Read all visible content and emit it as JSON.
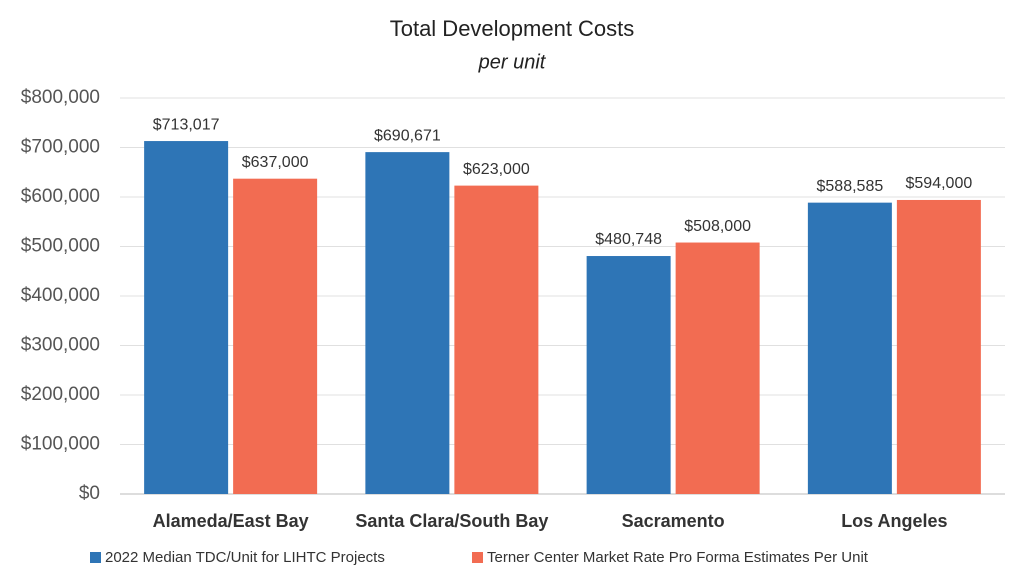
{
  "chart_data": {
    "type": "bar",
    "title": "Total Development Costs",
    "subtitle": "per unit",
    "categories": [
      "Alameda/East Bay",
      "Santa Clara/South Bay",
      "Sacramento",
      "Los Angeles"
    ],
    "series": [
      {
        "name": "2022 Median TDC/Unit for LIHTC Projects",
        "color": "#2e75b6",
        "values": [
          713017,
          690671,
          480748,
          588585
        ],
        "value_labels": [
          "$713,017",
          "$690,671",
          "$480,748",
          "$588,585"
        ]
      },
      {
        "name": "Terner Center Market Rate Pro Forma Estimates Per Unit",
        "color": "#f26c52",
        "values": [
          637000,
          623000,
          508000,
          594000
        ],
        "value_labels": [
          "$637,000",
          "$623,000",
          "$508,000",
          "$594,000"
        ]
      }
    ],
    "ylim": [
      0,
      800000
    ],
    "yticks": [
      {
        "value": 0,
        "label": "$0"
      },
      {
        "value": 100000,
        "label": "$100,000"
      },
      {
        "value": 200000,
        "label": "$200,000"
      },
      {
        "value": 300000,
        "label": "$300,000"
      },
      {
        "value": 400000,
        "label": "$400,000"
      },
      {
        "value": 500000,
        "label": "$500,000"
      },
      {
        "value": 600000,
        "label": "$600,000"
      },
      {
        "value": 700000,
        "label": "$700,000"
      },
      {
        "value": 800000,
        "label": "$800,000"
      }
    ],
    "grid": true,
    "legend": "bottom"
  }
}
